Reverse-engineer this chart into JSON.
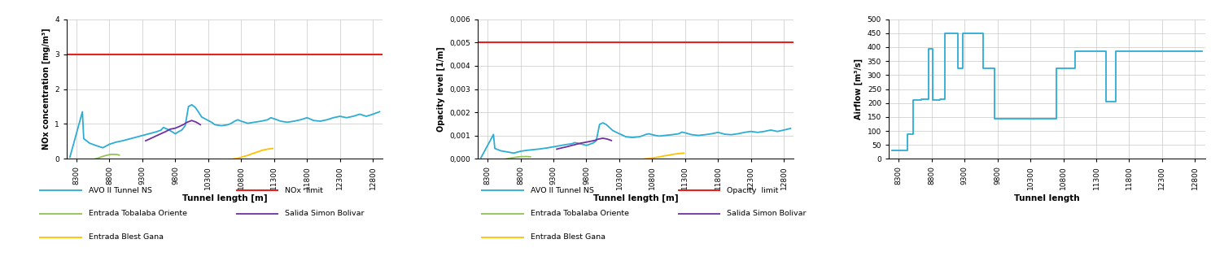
{
  "x_range": [
    8150,
    12950
  ],
  "x_ticks": [
    8300,
    8800,
    9300,
    9800,
    10300,
    10800,
    11300,
    11800,
    12300,
    12800
  ],
  "nox_tunnel_x": [
    8200,
    8390,
    8410,
    8500,
    8600,
    8700,
    8800,
    8900,
    9000,
    9100,
    9200,
    9300,
    9400,
    9500,
    9580,
    9620,
    9680,
    9750,
    9800,
    9850,
    9900,
    9950,
    10000,
    10050,
    10100,
    10150,
    10200,
    10300,
    10350,
    10400,
    10500,
    10600,
    10650,
    10700,
    10750,
    10800,
    10900,
    11000,
    11100,
    11200,
    11250,
    11300,
    11400,
    11500,
    11600,
    11700,
    11800,
    11900,
    12000,
    12100,
    12200,
    12300,
    12400,
    12500,
    12600,
    12700,
    12800,
    12900
  ],
  "nox_tunnel_y": [
    0.05,
    1.35,
    0.58,
    0.45,
    0.38,
    0.32,
    0.42,
    0.48,
    0.52,
    0.57,
    0.62,
    0.67,
    0.72,
    0.77,
    0.82,
    0.9,
    0.85,
    0.78,
    0.72,
    0.78,
    0.83,
    0.95,
    1.5,
    1.55,
    1.48,
    1.35,
    1.2,
    1.1,
    1.05,
    0.98,
    0.95,
    0.98,
    1.02,
    1.08,
    1.12,
    1.08,
    1.02,
    1.05,
    1.08,
    1.12,
    1.18,
    1.15,
    1.08,
    1.05,
    1.08,
    1.12,
    1.18,
    1.1,
    1.08,
    1.12,
    1.18,
    1.22,
    1.18,
    1.22,
    1.28,
    1.22,
    1.28,
    1.35
  ],
  "nox_tobalaba_x": [
    8580,
    8620,
    8680,
    8750,
    8820,
    8900,
    8950
  ],
  "nox_tobalaba_y": [
    0.0,
    0.02,
    0.06,
    0.1,
    0.13,
    0.13,
    0.11
  ],
  "nox_bolivar_x": [
    9350,
    9420,
    9500,
    9580,
    9650,
    9720,
    9800,
    9850,
    9920,
    9980,
    10050,
    10120,
    10180
  ],
  "nox_bolivar_y": [
    0.52,
    0.58,
    0.65,
    0.72,
    0.78,
    0.85,
    0.88,
    0.92,
    0.98,
    1.05,
    1.1,
    1.05,
    0.98
  ],
  "nox_blest_x": [
    10680,
    10750,
    10820,
    10900,
    10980,
    11050,
    11120,
    11200,
    11280
  ],
  "nox_blest_y": [
    0.0,
    0.02,
    0.06,
    0.1,
    0.16,
    0.2,
    0.25,
    0.28,
    0.3
  ],
  "nox_limit": 3.0,
  "nox_ylim": [
    0,
    4
  ],
  "nox_yticks": [
    0,
    1,
    2,
    3,
    4
  ],
  "nox_ylabel": "NOx concentration [mg/m³]",
  "nox_xlabel": "Tunnel length [m]",
  "opacity_tunnel_x": [
    8200,
    8390,
    8410,
    8500,
    8600,
    8700,
    8800,
    8900,
    9000,
    9100,
    9200,
    9300,
    9400,
    9500,
    9580,
    9620,
    9680,
    9750,
    9800,
    9850,
    9900,
    9950,
    10000,
    10050,
    10100,
    10150,
    10200,
    10300,
    10350,
    10400,
    10500,
    10600,
    10650,
    10700,
    10750,
    10800,
    10900,
    11000,
    11100,
    11200,
    11250,
    11300,
    11400,
    11500,
    11600,
    11700,
    11800,
    11900,
    12000,
    12100,
    12200,
    12300,
    12400,
    12500,
    12600,
    12700,
    12800,
    12900
  ],
  "opacity_tunnel_y": [
    5e-05,
    0.00105,
    0.00045,
    0.00035,
    0.0003,
    0.00025,
    0.00033,
    0.00037,
    0.0004,
    0.00043,
    0.00047,
    0.00052,
    0.00057,
    0.00062,
    0.00065,
    0.0007,
    0.00067,
    0.00062,
    0.00058,
    0.00063,
    0.00068,
    0.00078,
    0.00148,
    0.00155,
    0.00148,
    0.00135,
    0.00122,
    0.00108,
    0.00102,
    0.00095,
    0.00092,
    0.00095,
    0.00099,
    0.00105,
    0.00108,
    0.00104,
    0.00098,
    0.00101,
    0.00104,
    0.00108,
    0.00115,
    0.00112,
    0.00104,
    0.00101,
    0.00104,
    0.00108,
    0.00114,
    0.00106,
    0.00104,
    0.00108,
    0.00114,
    0.00118,
    0.00114,
    0.00118,
    0.00124,
    0.00118,
    0.00124,
    0.00131
  ],
  "opacity_tobalaba_x": [
    8580,
    8620,
    8680,
    8750,
    8820,
    8900,
    8950
  ],
  "opacity_tobalaba_y": [
    0.0,
    2e-05,
    5e-05,
    8e-05,
    0.0001,
    0.0001,
    9e-05
  ],
  "opacity_bolivar_x": [
    9350,
    9420,
    9500,
    9580,
    9650,
    9720,
    9800,
    9850,
    9920,
    9980,
    10050,
    10120,
    10180
  ],
  "opacity_bolivar_y": [
    0.00042,
    0.00047,
    0.00052,
    0.00058,
    0.00063,
    0.00068,
    0.00072,
    0.00075,
    0.00079,
    0.00085,
    0.00089,
    0.00085,
    0.00079
  ],
  "opacity_blest_x": [
    10680,
    10750,
    10820,
    10900,
    10980,
    11050,
    11120,
    11200,
    11280
  ],
  "opacity_blest_y": [
    0.0,
    2e-05,
    5e-05,
    8e-05,
    0.00013,
    0.00016,
    0.0002,
    0.00023,
    0.00025
  ],
  "opacity_limit": 0.005,
  "opacity_ylim": [
    0,
    0.006
  ],
  "opacity_yticks": [
    0.0,
    0.001,
    0.002,
    0.003,
    0.004,
    0.005,
    0.006
  ],
  "opacity_ylabel": "Opacity level [1/m]",
  "opacity_xlabel": "Tunnel length [m]",
  "airflow_x": [
    8200,
    8430,
    8430,
    8520,
    8520,
    8640,
    8640,
    8750,
    8750,
    8820,
    8820,
    8930,
    8930,
    9000,
    9000,
    9200,
    9200,
    9280,
    9280,
    9580,
    9580,
    9750,
    9750,
    10700,
    10700,
    10980,
    10980,
    11450,
    11450,
    11600,
    11600,
    11750,
    11750,
    12900
  ],
  "airflow_y": [
    30,
    30,
    90,
    90,
    210,
    210,
    215,
    215,
    395,
    395,
    210,
    210,
    215,
    215,
    450,
    450,
    325,
    325,
    450,
    450,
    325,
    325,
    145,
    145,
    325,
    325,
    385,
    385,
    205,
    205,
    385,
    385,
    385,
    385
  ],
  "airflow_ylim": [
    0,
    500
  ],
  "airflow_yticks": [
    0,
    50,
    100,
    150,
    200,
    250,
    300,
    350,
    400,
    450,
    500
  ],
  "airflow_ylabel": "Airflow [m³/s]",
  "airflow_xlabel": "Tunnel length",
  "color_tunnel": "#2badd4",
  "color_limit": "#e8201e",
  "color_tobalaba": "#92c353",
  "color_bolivar": "#7030a0",
  "color_blest": "#ffc000",
  "legend1_entries": [
    "AVO II Tunnel NS",
    "NOx  limit",
    "Entrada Tobalaba Oriente",
    "Salida Simon Bolivar",
    "Entrada Blest Gana"
  ],
  "legend2_entries": [
    "AVO II Tunnel NS",
    "Opacity  limit",
    "Entrada Tobalaba Oriente",
    "Salida Simon Bolivar",
    "Entrada Blest Gana"
  ],
  "grid_color": "#c8c8c8",
  "bg_color": "#ffffff",
  "fig_bg": "#ffffff"
}
